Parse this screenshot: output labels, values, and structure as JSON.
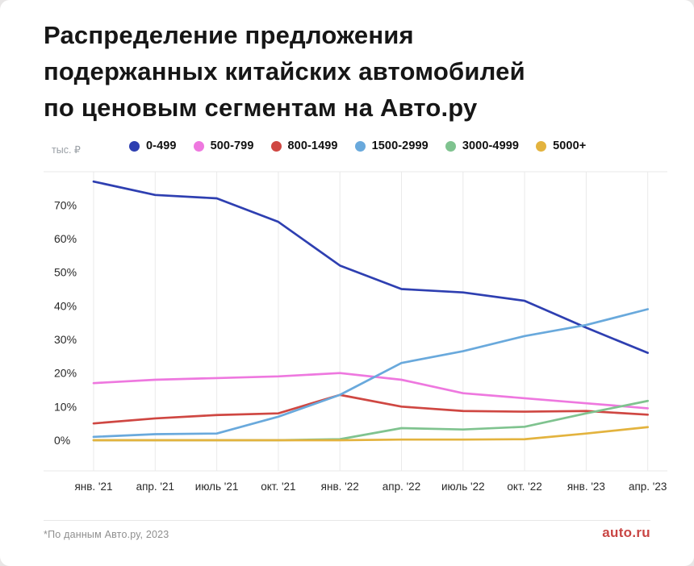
{
  "title": {
    "lines": [
      "Распределение предложения",
      "подержанных китайских автомобилей",
      "по ценовым сегментам на Авто.ру"
    ]
  },
  "legend": {
    "unit_label": "тыс. ₽",
    "items": [
      {
        "label": "0-499",
        "color": "#2e3fb1"
      },
      {
        "label": "500-799",
        "color": "#ee78df"
      },
      {
        "label": "800-1499",
        "color": "#cf4742"
      },
      {
        "label": "1500-2999",
        "color": "#69a9dc"
      },
      {
        "label": "3000-4999",
        "color": "#7fc38f"
      },
      {
        "label": "5000+",
        "color": "#e3b33e"
      }
    ]
  },
  "chart_data": {
    "type": "line",
    "title": "Распределение предложения подержанных китайских автомобилей по ценовым сегментам на Авто.ру",
    "unit": "тыс. ₽",
    "x": [
      "янв. '21",
      "апр. '21",
      "июль '21",
      "окт. '21",
      "янв. '22",
      "апр. '22",
      "июль '22",
      "окт. '22",
      "янв. '23",
      "апр. '23"
    ],
    "series": [
      {
        "name": "0-499",
        "color": "#2e3fb1",
        "values": [
          77,
          73,
          72,
          65,
          52,
          45,
          44,
          41.5,
          33.5,
          26
        ]
      },
      {
        "name": "500-799",
        "color": "#ee78df",
        "values": [
          17,
          18,
          18.5,
          19,
          20,
          18,
          14,
          12.5,
          11,
          9.5
        ]
      },
      {
        "name": "800-1499",
        "color": "#cf4742",
        "values": [
          5,
          6.5,
          7.5,
          8,
          13.5,
          10,
          8.7,
          8.5,
          8.7,
          7.6
        ]
      },
      {
        "name": "1500-2999",
        "color": "#69a9dc",
        "values": [
          1,
          1.8,
          2,
          7,
          13.5,
          23,
          26.5,
          31,
          34.3,
          39
        ]
      },
      {
        "name": "3000-4999",
        "color": "#7fc38f",
        "values": [
          0,
          0,
          0,
          0,
          0.3,
          3.6,
          3.2,
          4,
          8,
          11.7
        ]
      },
      {
        "name": "5000+",
        "color": "#e3b33e",
        "values": [
          0,
          0,
          0,
          0,
          0,
          0.2,
          0.2,
          0.3,
          2,
          3.9
        ]
      }
    ],
    "yticks": [
      "0%",
      "10%",
      "20%",
      "30%",
      "40%",
      "50%",
      "60%",
      "70%"
    ],
    "ylim": [
      0,
      80
    ],
    "grid": "vertical-only",
    "legend_position": "top"
  },
  "footer": {
    "note": "*По данным Авто.ру, 2023",
    "logo": "auto.ru",
    "logo_color": "#c94543"
  }
}
